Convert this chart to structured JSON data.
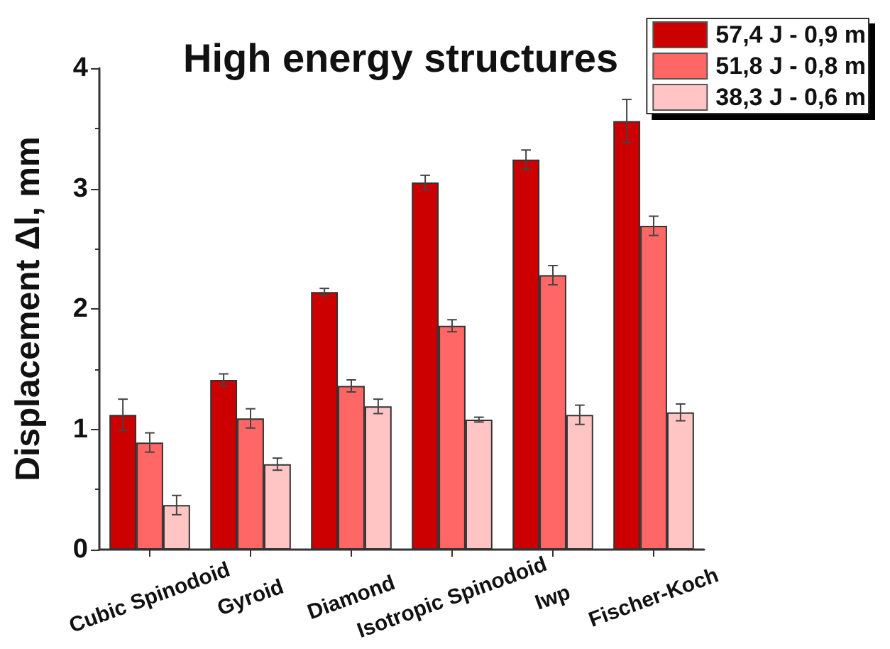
{
  "chart_data": {
    "type": "bar",
    "title": "High energy structures",
    "ylabel": "Displacement Δl, mm",
    "categories": [
      "Cubic Spinodoid",
      "Gyroid",
      "Diamond",
      "Isotropic Spinodoid",
      "Iwp",
      "Fischer-Koch"
    ],
    "series": [
      {
        "name": "57,4 J - 0,9 m",
        "color": "#cc0000",
        "values": [
          1.12,
          1.41,
          2.14,
          3.05,
          3.24,
          3.56
        ],
        "errors": [
          0.13,
          0.05,
          0.03,
          0.06,
          0.08,
          0.18
        ]
      },
      {
        "name": "51,8 J - 0,8 m",
        "color": "#ff6666",
        "values": [
          0.89,
          1.09,
          1.36,
          1.86,
          2.28,
          2.69
        ],
        "errors": [
          0.08,
          0.08,
          0.05,
          0.05,
          0.08,
          0.08
        ]
      },
      {
        "name": "38,3 J - 0,6 m",
        "color": "#ffc4c4",
        "values": [
          0.37,
          0.71,
          1.19,
          1.08,
          1.12,
          1.14
        ],
        "errors": [
          0.08,
          0.05,
          0.06,
          0.02,
          0.08,
          0.07
        ]
      }
    ],
    "ylim": [
      0,
      4
    ],
    "yticks": [
      0,
      {
        "value": 0.5,
        "label": null
      },
      1,
      {
        "value": 1.5,
        "label": null
      },
      2,
      {
        "value": 2.5,
        "label": null
      },
      3,
      {
        "value": 3.5,
        "label": null
      },
      4
    ],
    "legend": "top right"
  }
}
